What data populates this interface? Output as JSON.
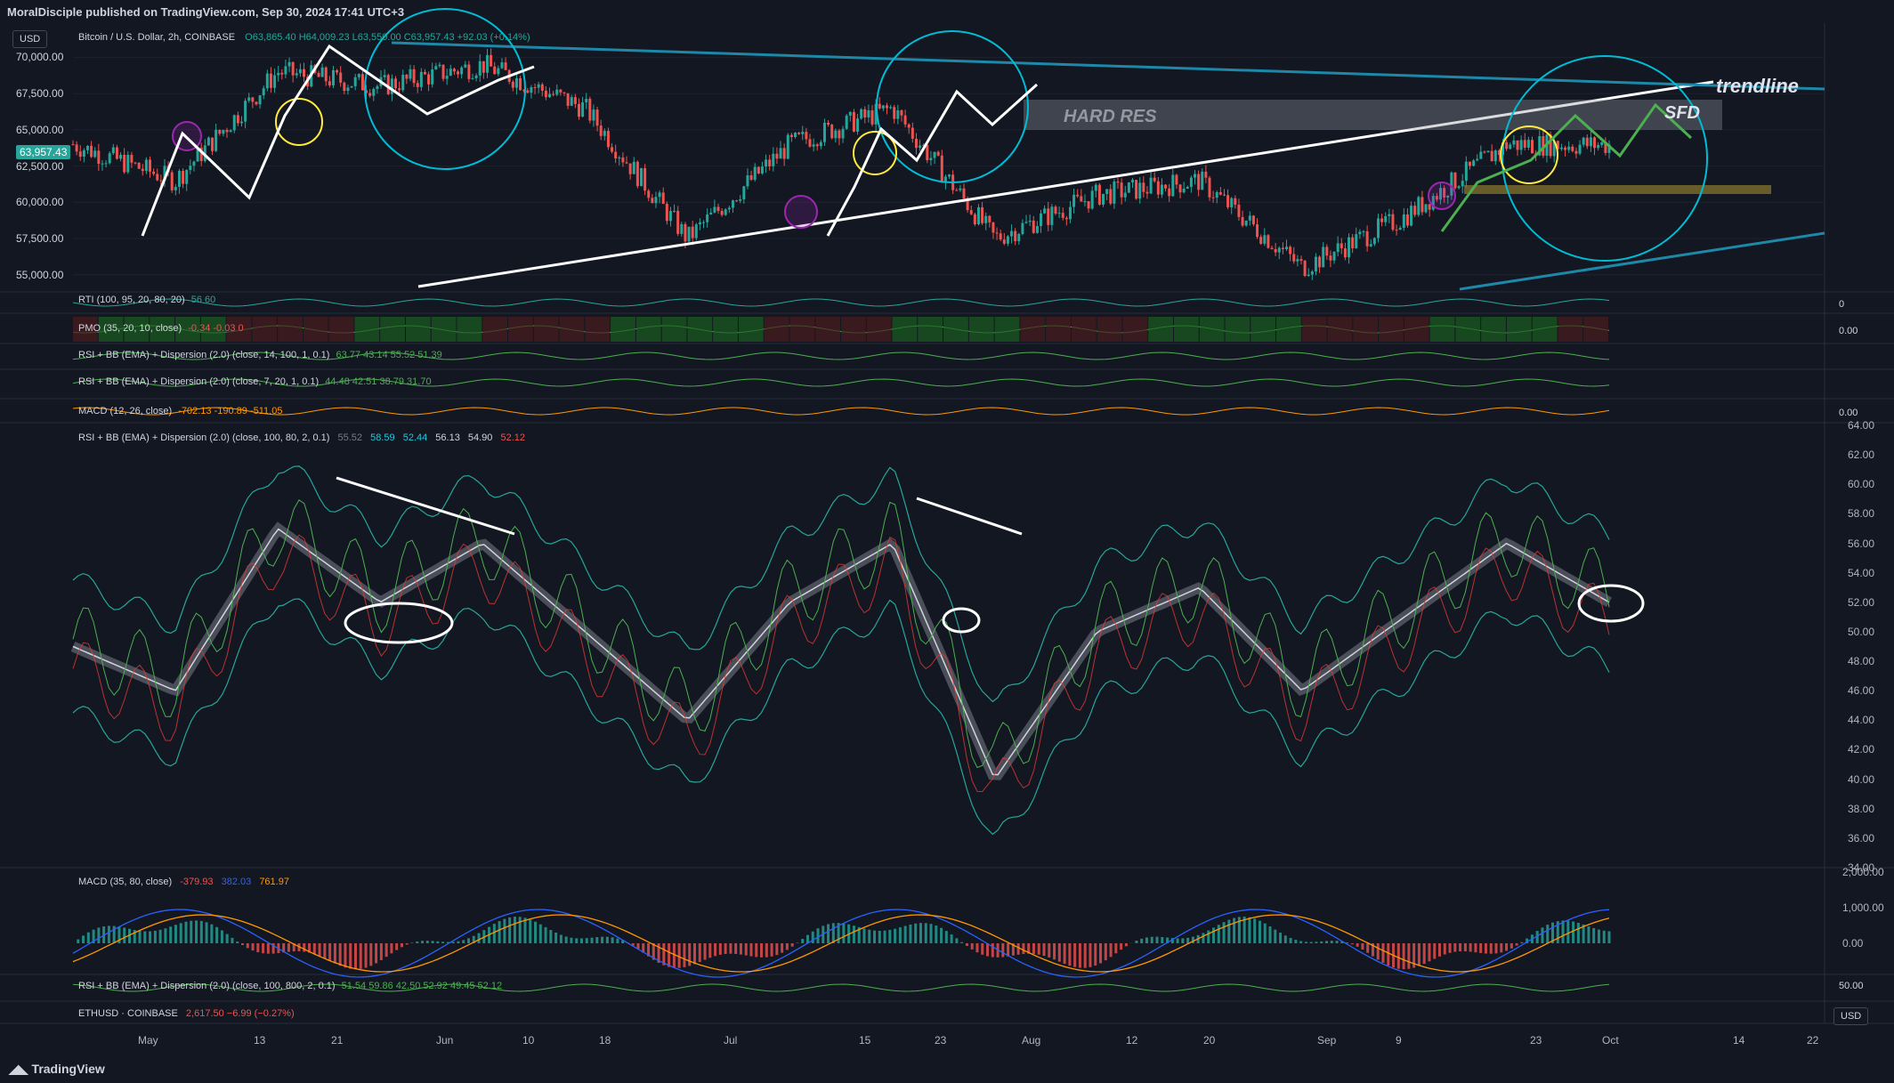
{
  "header": {
    "published_text": "MoralDisciple published on TradingView.com, Sep 30, 2024 17:41 UTC+3",
    "currency_button": "USD",
    "symbol_title": "Bitcoin / U.S. Dollar, 2h, COINBASE",
    "ohlc": "O63,865.40  H64,009.23  L63,550.00  C63,957.43  +92.03 (+0.14%)",
    "last_price": "63,957.43"
  },
  "main_chart": {
    "y_ticks": [
      "70,000.00",
      "67,500.00",
      "65,000.00",
      "62,500.00",
      "60,000.00",
      "57,500.00",
      "55,000.00"
    ],
    "annotations": {
      "hard_res": "HARD RES",
      "trendline": "trendline",
      "sfd": "SFD"
    },
    "colors": {
      "up": "#26a69a",
      "down": "#ef5350",
      "annot_white": "#ffffff",
      "circle": "#00bcd4",
      "yellow": "#ffeb3b",
      "purple": "#9c27b0",
      "green": "#4caf50"
    }
  },
  "indicators": [
    {
      "name": "rti",
      "label": "RTI (100, 95, 20, 80, 20)",
      "values": "56  60",
      "right_value": "0"
    },
    {
      "name": "pmo",
      "label": "PMO (35, 20, 10, close)",
      "values": "-0.34  -0.03  0",
      "right_value": "0.00"
    },
    {
      "name": "rsi-bb-1",
      "label": "RSI + BB (EMA) + Dispersion (2.0) (close, 14, 100, 1, 0.1)",
      "values": "63.77  43.14  55.52  51.39",
      "right_value": ""
    },
    {
      "name": "rsi-bb-2",
      "label": "RSI + BB (EMA) + Dispersion (2.0) (close, 7, 20, 1, 0.1)",
      "values": "44.48  42.51  38.79  31.70",
      "right_value": ""
    },
    {
      "name": "macd-1",
      "label": "MACD (12, 26, close)",
      "values": "-702.13  -190.89  -511.05",
      "right_value": "0.00"
    }
  ],
  "rsi_panel": {
    "label": "RSI + BB (EMA) + Dispersion (2.0) (close, 100, 80, 2, 0.1)",
    "values": [
      "55.52",
      "58.59",
      "52.44",
      "56.13",
      "54.90",
      "52.12"
    ],
    "y_ticks": [
      "64.00",
      "62.00",
      "60.00",
      "58.00",
      "56.00",
      "54.00",
      "52.00",
      "50.00",
      "48.00",
      "46.00",
      "44.00",
      "42.00",
      "40.00",
      "38.00",
      "36.00",
      "34.00"
    ]
  },
  "macd_panel": {
    "label": "MACD (35, 80, close)",
    "values": [
      "-379.93",
      "382.03",
      "761.97"
    ],
    "y_ticks": [
      "2,000.00",
      "1,000.00",
      "0.00"
    ]
  },
  "rsi_bb_bottom": {
    "label": "RSI + BB (EMA) + Dispersion (2.0) (close, 100, 800, 2, 0.1)",
    "values": "51.54  59.86  42.50  52.92  49.45  52.12",
    "right_value": "50.00"
  },
  "ethusd": {
    "label": "ETHUSD · COINBASE",
    "values": "2,617.50  −6.99 (−0.27%)"
  },
  "x_axis": {
    "labels": [
      "May",
      "13",
      "21",
      "Jun",
      "10",
      "18",
      "Jul",
      "15",
      "23",
      "Aug",
      "12",
      "20",
      "Sep",
      "9",
      "23",
      "Oct",
      "14",
      "22"
    ],
    "currency": "USD"
  },
  "footer": {
    "logo": "TradingView"
  },
  "chart_data": {
    "type": "line",
    "title": "Bitcoin / U.S. Dollar, 2h, COINBASE",
    "xlabel": "",
    "ylabel": "",
    "categories": [
      "May",
      "13",
      "21",
      "Jun",
      "10",
      "18",
      "Jul",
      "15",
      "23",
      "Aug",
      "12",
      "20",
      "Sep",
      "9",
      "23",
      "Oct"
    ],
    "series": [
      {
        "name": "",
        "values": [
          64000,
          61500,
          69000,
          68000,
          69500,
          66500,
          57500,
          64000,
          66500,
          57500,
          60500,
          61500,
          55500,
          59000,
          64000,
          63957
        ]
      }
    ],
    "ylim": [
      54000,
      71500
    ],
    "grid": true
  }
}
